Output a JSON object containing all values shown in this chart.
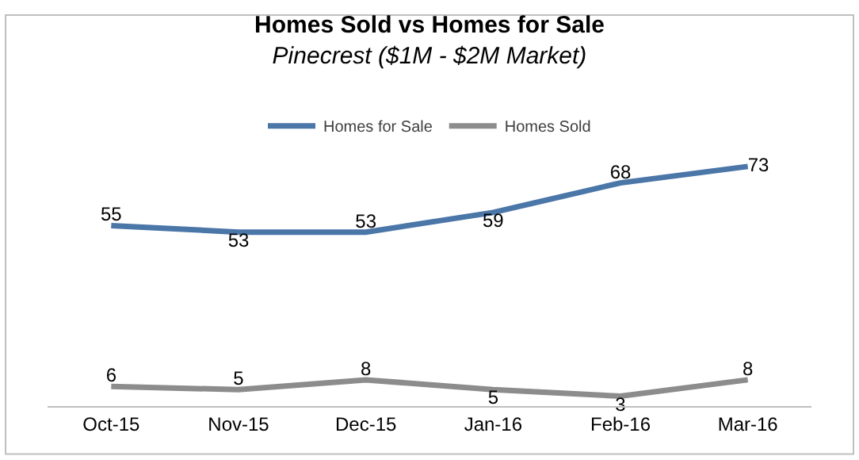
{
  "chart_data": {
    "type": "line",
    "title": "Homes Sold vs Homes for Sale",
    "subtitle": "Pinecrest ($1M - $2M Market)",
    "categories": [
      "Oct-15",
      "Nov-15",
      "Dec-15",
      "Jan-16",
      "Feb-16",
      "Mar-16"
    ],
    "series": [
      {
        "name": "Homes for Sale",
        "color": "#4a76a8",
        "values": [
          55,
          53,
          53,
          59,
          68,
          73
        ]
      },
      {
        "name": "Homes Sold",
        "color": "#8c8c8c",
        "values": [
          6,
          5,
          8,
          5,
          3,
          8
        ]
      }
    ],
    "tick_labels": "x",
    "data_labels": true,
    "legend": "top",
    "marker": "none",
    "line_style": "solid"
  }
}
